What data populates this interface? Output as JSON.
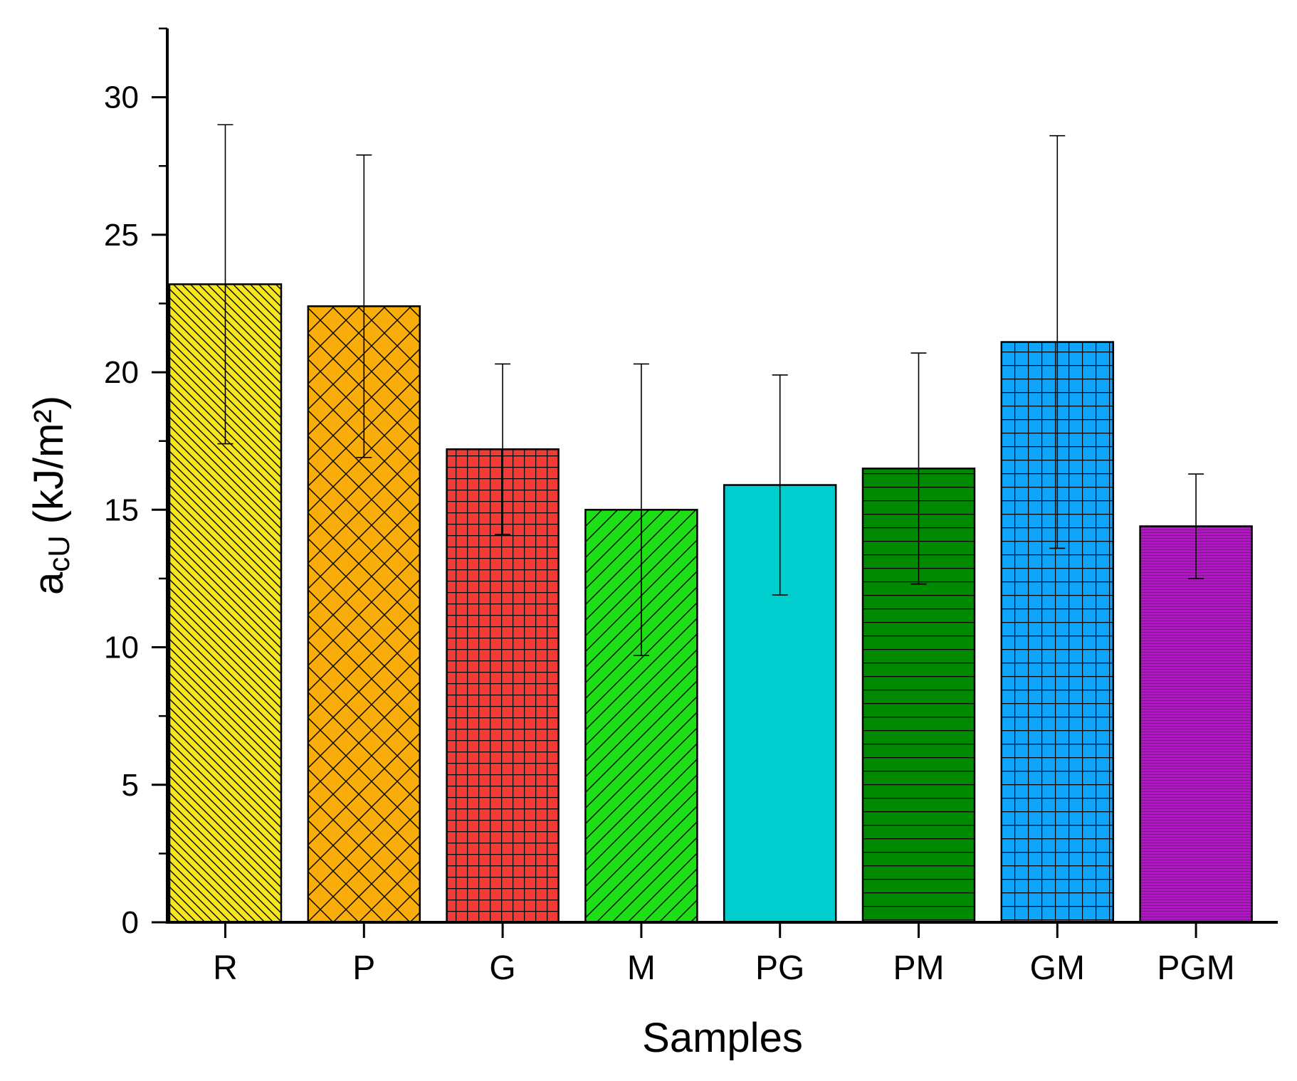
{
  "chart_data": {
    "type": "bar",
    "title": "",
    "xlabel": "Samples",
    "ylabel": {
      "main": "a",
      "subscript": "cU",
      "units": " (kJ/m²)"
    },
    "ylim": [
      0,
      32.5
    ],
    "yticks": [
      0,
      5,
      10,
      15,
      20,
      25,
      30
    ],
    "ytick_labels": [
      "0",
      "5",
      "10",
      "15",
      "20",
      "25",
      "30"
    ],
    "categories": [
      "R",
      "P",
      "G",
      "M",
      "PG",
      "PM",
      "GM",
      "PGM"
    ],
    "values": [
      23.2,
      22.4,
      17.2,
      15.0,
      15.9,
      16.5,
      21.1,
      14.4
    ],
    "error_low": [
      17.4,
      16.9,
      14.1,
      9.7,
      11.9,
      12.3,
      13.6,
      12.5
    ],
    "error_high": [
      29.0,
      27.9,
      20.3,
      20.3,
      19.9,
      20.7,
      28.6,
      16.3
    ],
    "colors": [
      "#f5e620",
      "#f9ad0a",
      "#f23a36",
      "#1cdf16",
      "#00cdcd",
      "#008a00",
      "#0ea5fb",
      "#b413c8"
    ],
    "patterns": [
      "diag-back",
      "crosshatch",
      "grid-fine",
      "diag-forward",
      "none",
      "horizontal",
      "grid-coarse",
      "horizontal-fine"
    ],
    "grid": false,
    "legend": "none"
  }
}
